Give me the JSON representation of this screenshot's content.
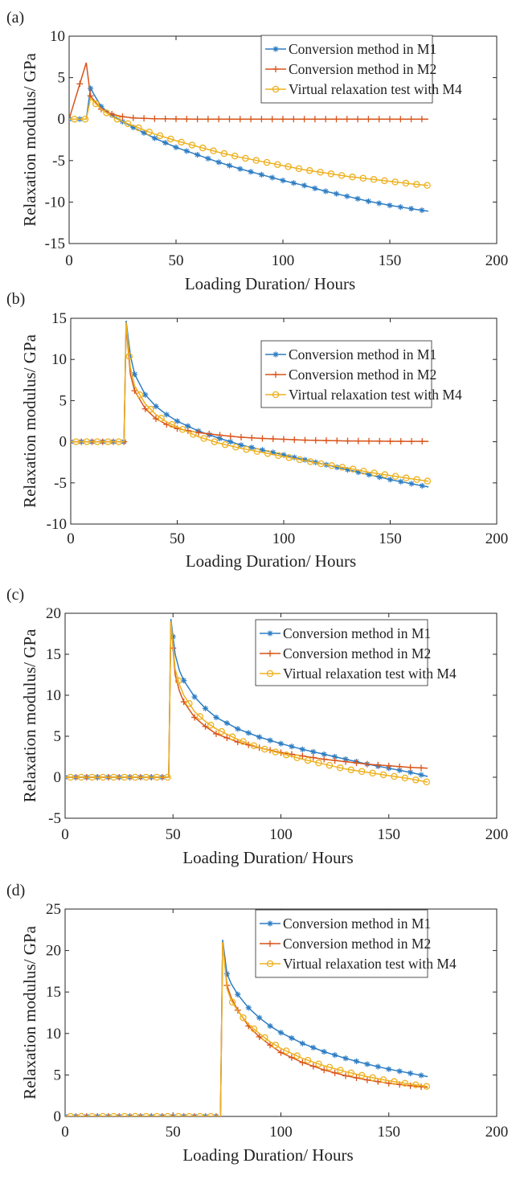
{
  "colors": {
    "m1": "#2e7dc4",
    "m2": "#d9541a",
    "m4": "#edb120",
    "axis": "#262626"
  },
  "legend_labels": [
    "Conversion method in M1",
    "Conversion method in M2",
    "Virtual relaxation test with M4"
  ],
  "chart_data": [
    {
      "panel_label": "(a)",
      "type": "line",
      "xlabel": "Loading Duration/ Hours",
      "ylabel": "Relaxation modulus/ GPa",
      "xlim": [
        0,
        200
      ],
      "ylim": [
        -15,
        10
      ],
      "xticks": [
        0,
        50,
        100,
        150,
        200
      ],
      "yticks": [
        -15,
        -10,
        -5,
        0,
        5,
        10
      ],
      "legend_position": "top-right",
      "grid": false,
      "onset_hour": 8,
      "series": [
        {
          "name": "Conversion method in M1",
          "marker": "asterisk",
          "x": [
            0,
            8,
            10,
            15,
            20,
            25,
            30,
            40,
            50,
            60,
            70,
            80,
            90,
            100,
            110,
            120,
            130,
            140,
            150,
            160,
            168
          ],
          "y": [
            0,
            0,
            3.7,
            1.5,
            0.5,
            -0.3,
            -1,
            -2.3,
            -3.4,
            -4.3,
            -5.2,
            -6,
            -6.7,
            -7.4,
            -8,
            -8.7,
            -9.3,
            -9.9,
            -10.4,
            -10.8,
            -11.1
          ]
        },
        {
          "name": "Conversion method in M2",
          "marker": "plus",
          "x": [
            0,
            8,
            10,
            15,
            20,
            25,
            30,
            40,
            50,
            60,
            80,
            100,
            120,
            140,
            168
          ],
          "y": [
            0,
            6.8,
            2.8,
            1.2,
            0.6,
            0.3,
            0.15,
            0.05,
            0.02,
            0,
            0,
            0,
            0,
            0,
            0
          ]
        },
        {
          "name": "Virtual relaxation test with M4",
          "marker": "circle",
          "x": [
            0,
            8,
            10,
            15,
            20,
            25,
            30,
            40,
            50,
            60,
            70,
            80,
            90,
            100,
            110,
            120,
            130,
            140,
            150,
            160,
            168
          ],
          "y": [
            0,
            0,
            2.5,
            1.2,
            0.3,
            -0.3,
            -0.8,
            -1.8,
            -2.6,
            -3.3,
            -4,
            -4.6,
            -5.1,
            -5.6,
            -6.1,
            -6.5,
            -6.9,
            -7.2,
            -7.5,
            -7.8,
            -8
          ]
        }
      ]
    },
    {
      "panel_label": "(b)",
      "type": "line",
      "xlabel": "Loading Duration/ Hours",
      "ylabel": "Relaxation modulus/ GPa",
      "xlim": [
        0,
        200
      ],
      "ylim": [
        -10,
        15
      ],
      "xticks": [
        0,
        50,
        100,
        150,
        200
      ],
      "yticks": [
        -10,
        -5,
        0,
        5,
        10,
        15
      ],
      "legend_position": "top-right",
      "grid": false,
      "onset_hour": 25,
      "series": [
        {
          "name": "Conversion method in M1",
          "marker": "asterisk",
          "x": [
            0,
            25,
            26,
            28,
            30,
            35,
            40,
            45,
            50,
            60,
            70,
            80,
            90,
            100,
            110,
            120,
            130,
            140,
            150,
            160,
            168
          ],
          "y": [
            0,
            0,
            14.7,
            10.5,
            8.2,
            5.7,
            4.3,
            3.3,
            2.5,
            1.3,
            0.4,
            -0.4,
            -1,
            -1.6,
            -2.2,
            -2.8,
            -3.4,
            -4,
            -4.6,
            -5.1,
            -5.5
          ]
        },
        {
          "name": "Conversion method in M2",
          "marker": "plus",
          "x": [
            0,
            25,
            26,
            28,
            30,
            35,
            40,
            45,
            50,
            60,
            70,
            80,
            90,
            100,
            110,
            120,
            130,
            140,
            150,
            160,
            168
          ],
          "y": [
            0,
            0,
            14.2,
            8.2,
            6.2,
            4,
            2.8,
            2.1,
            1.6,
            1.1,
            0.8,
            0.55,
            0.4,
            0.3,
            0.2,
            0.15,
            0.1,
            0.08,
            0.06,
            0.05,
            0.05
          ]
        },
        {
          "name": "Virtual relaxation test with M4",
          "marker": "circle",
          "x": [
            0,
            25,
            26,
            28,
            30,
            35,
            40,
            45,
            50,
            60,
            70,
            80,
            90,
            100,
            110,
            120,
            130,
            140,
            150,
            160,
            168
          ],
          "y": [
            0,
            0,
            14.5,
            9,
            6.8,
            4.6,
            3.3,
            2.4,
            1.8,
            0.6,
            -0.2,
            -0.8,
            -1.3,
            -1.8,
            -2.3,
            -2.8,
            -3.2,
            -3.7,
            -4.1,
            -4.5,
            -4.8
          ]
        }
      ]
    },
    {
      "panel_label": "(c)",
      "type": "line",
      "xlabel": "Loading Duration/ Hours",
      "ylabel": "Relaxation modulus/ GPa",
      "xlim": [
        0,
        200
      ],
      "ylim": [
        -5,
        20
      ],
      "xticks": [
        0,
        50,
        100,
        150,
        200
      ],
      "yticks": [
        -5,
        0,
        5,
        10,
        15,
        20
      ],
      "legend_position": "top-right",
      "grid": false,
      "onset_hour": 48,
      "series": [
        {
          "name": "Conversion method in M1",
          "marker": "asterisk",
          "x": [
            0,
            48,
            49,
            51,
            53,
            55,
            60,
            65,
            70,
            80,
            90,
            100,
            110,
            120,
            130,
            140,
            150,
            160,
            168
          ],
          "y": [
            0,
            0,
            19.3,
            15,
            13,
            11.8,
            9.8,
            8.4,
            7.3,
            5.9,
            4.9,
            4.1,
            3.4,
            2.8,
            2.2,
            1.6,
            1.1,
            0.6,
            0.1
          ]
        },
        {
          "name": "Conversion method in M2",
          "marker": "plus",
          "x": [
            0,
            48,
            49,
            51,
            53,
            55,
            60,
            65,
            70,
            80,
            90,
            100,
            110,
            120,
            130,
            140,
            150,
            160,
            168
          ],
          "y": [
            0,
            0,
            19,
            12.5,
            10.5,
            9.2,
            7.3,
            6.2,
            5.3,
            4.3,
            3.6,
            3,
            2.6,
            2.2,
            1.9,
            1.6,
            1.4,
            1.2,
            1.1
          ]
        },
        {
          "name": "Virtual relaxation test with M4",
          "marker": "circle",
          "x": [
            0,
            48,
            49,
            51,
            53,
            55,
            60,
            65,
            70,
            80,
            90,
            100,
            110,
            120,
            130,
            140,
            150,
            160,
            168
          ],
          "y": [
            0,
            0,
            19,
            13.2,
            11.3,
            10,
            8,
            6.8,
            5.9,
            4.6,
            3.6,
            2.9,
            2.2,
            1.6,
            1,
            0.6,
            0.2,
            -0.2,
            -0.6
          ]
        }
      ]
    },
    {
      "panel_label": "(d)",
      "type": "line",
      "xlabel": "Loading Duration/ Hours",
      "ylabel": "Relaxation modulus/ GPa",
      "xlim": [
        0,
        200
      ],
      "ylim": [
        0,
        25
      ],
      "xticks": [
        0,
        50,
        100,
        150,
        200
      ],
      "yticks": [
        0,
        5,
        10,
        15,
        20,
        25
      ],
      "legend_position": "top-right",
      "grid": false,
      "onset_hour": 72,
      "series": [
        {
          "name": "Conversion method in M1",
          "marker": "asterisk",
          "x": [
            0,
            72,
            73,
            75,
            77,
            80,
            85,
            90,
            95,
            100,
            110,
            120,
            130,
            140,
            150,
            160,
            168
          ],
          "y": [
            0,
            0,
            21.3,
            17.2,
            16,
            14.7,
            13.1,
            11.9,
            10.9,
            10.1,
            8.8,
            7.8,
            7,
            6.3,
            5.7,
            5.2,
            4.8
          ]
        },
        {
          "name": "Conversion method in M2",
          "marker": "plus",
          "x": [
            0,
            72,
            73,
            75,
            77,
            80,
            85,
            90,
            95,
            100,
            110,
            120,
            130,
            140,
            150,
            160,
            168
          ],
          "y": [
            0,
            0,
            21,
            15.8,
            14.3,
            12.8,
            10.9,
            9.6,
            8.6,
            7.7,
            6.5,
            5.6,
            4.9,
            4.4,
            4,
            3.7,
            3.5
          ]
        },
        {
          "name": "Virtual relaxation test with M4",
          "marker": "circle",
          "x": [
            0,
            72,
            73,
            75,
            77,
            80,
            85,
            90,
            95,
            100,
            110,
            120,
            130,
            140,
            150,
            160,
            168
          ],
          "y": [
            0,
            0,
            21,
            15.4,
            14,
            12.7,
            11.1,
            10,
            9,
            8.2,
            7,
            6.1,
            5.4,
            4.8,
            4.3,
            3.9,
            3.6
          ]
        }
      ]
    }
  ]
}
